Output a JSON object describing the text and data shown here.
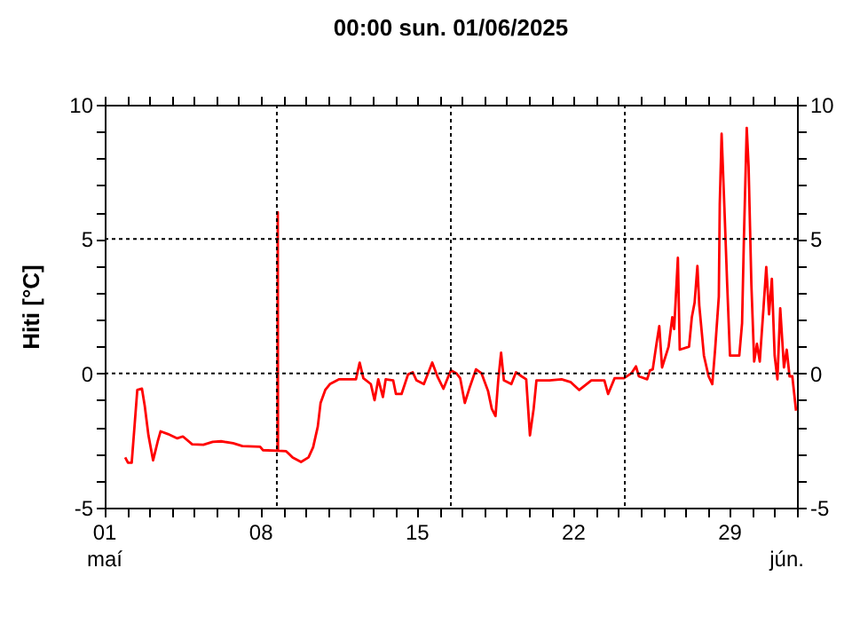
{
  "chart_data": {
    "type": "line",
    "title": "00:00   sun.  01/06/2025",
    "ylabel": "Hiti [°C]",
    "x": [
      "2025-05-01T22:00",
      "2025-05-02T01:00",
      "2025-05-02T05:00",
      "2025-05-02T08:00",
      "2025-05-02T11:00",
      "2025-05-02T16:00",
      "2025-05-02T19:00",
      "2025-05-02T23:00",
      "2025-05-03T04:00",
      "2025-05-03T09:00",
      "2025-05-03T12:00",
      "2025-05-03T20:00",
      "2025-05-04T06:00",
      "2025-05-04T12:00",
      "2025-05-04T22:00",
      "2025-05-05T10:00",
      "2025-05-05T20:00",
      "2025-05-06T05:00",
      "2025-05-06T18:00",
      "2025-05-07T04:00",
      "2025-05-07T23:00",
      "2025-05-08T02:00",
      "2025-05-08T17:45",
      "2025-05-08T18:00",
      "2025-05-08T18:15",
      "2025-05-09T03:00",
      "2025-05-09T10:00",
      "2025-05-09T19:00",
      "2025-05-10T03:00",
      "2025-05-10T08:00",
      "2025-05-10T13:00",
      "2025-05-10T16:00",
      "2025-05-10T21:00",
      "2025-05-11T02:00",
      "2025-05-11T12:00",
      "2025-05-12T06:00",
      "2025-05-12T10:00",
      "2025-05-12T14:00",
      "2025-05-12T22:00",
      "2025-05-13T02:00",
      "2025-05-13T06:00",
      "2025-05-13T11:00",
      "2025-05-13T14:00",
      "2025-05-13T22:00",
      "2025-05-14T01:00",
      "2025-05-14T07:00",
      "2025-05-14T14:00",
      "2025-05-14T19:00",
      "2025-05-14T23:00",
      "2025-05-15T07:00",
      "2025-05-15T16:00",
      "2025-05-15T22:00",
      "2025-05-16T04:00",
      "2025-05-16T12:00",
      "2025-05-16T18:00",
      "2025-05-16T22:00",
      "2025-05-17T03:00",
      "2025-05-17T08:00",
      "2025-05-17T15:00",
      "2025-05-17T21:00",
      "2025-05-18T04:00",
      "2025-05-18T08:00",
      "2025-05-18T12:00",
      "2025-05-18T15:00",
      "2025-05-18T18:00",
      "2025-05-18T21:00",
      "2025-05-19T05:00",
      "2025-05-19T10:00",
      "2025-05-19T16:00",
      "2025-05-19T21:00",
      "2025-05-20T01:00",
      "2025-05-20T05:00",
      "2025-05-20T08:00",
      "2025-05-20T22:00",
      "2025-05-21T11:00",
      "2025-05-21T21:00",
      "2025-05-22T06:00",
      "2025-05-22T19:00",
      "2025-05-23T09:00",
      "2025-05-23T13:00",
      "2025-05-23T20:00",
      "2025-05-24T06:00",
      "2025-05-24T14:00",
      "2025-05-24T19:00",
      "2025-05-24T22:00",
      "2025-05-25T07:00",
      "2025-05-25T10:00",
      "2025-05-25T13:00",
      "2025-05-25T17:00",
      "2025-05-25T20:00",
      "2025-05-25T23:00",
      "2025-05-26T06:00",
      "2025-05-26T10:00",
      "2025-05-26T12:00",
      "2025-05-26T16:00",
      "2025-05-26T18:00",
      "2025-05-27T04:00",
      "2025-05-27T07:00",
      "2025-05-27T10:00",
      "2025-05-27T13:00",
      "2025-05-27T15:00",
      "2025-05-27T20:00",
      "2025-05-28T01:00",
      "2025-05-28T05:00",
      "2025-05-28T08:00",
      "2025-05-28T12:00",
      "2025-05-28T13:00",
      "2025-05-28T15:00",
      "2025-05-28T18:00",
      "2025-05-28T21:00",
      "2025-05-29T00:00",
      "2025-05-29T10:00",
      "2025-05-29T13:00",
      "2025-05-29T15:00",
      "2025-05-29T18:00",
      "2025-05-29T20:00",
      "2025-05-29T23:00",
      "2025-05-30T02:00",
      "2025-05-30T05:00",
      "2025-05-30T08:00",
      "2025-05-30T12:00",
      "2025-05-30T15:00",
      "2025-05-30T18:00",
      "2025-05-30T21:00",
      "2025-05-31T00:00",
      "2025-05-31T03:00",
      "2025-05-31T06:00",
      "2025-05-31T10:00",
      "2025-05-31T13:00",
      "2025-05-31T16:00",
      "2025-05-31T19:00",
      "2025-05-31T23:00"
    ],
    "series": [
      {
        "color": "#ff0000",
        "values": [
          -3.13,
          -3.33,
          -3.33,
          -1.98,
          -0.62,
          -0.57,
          -1.21,
          -2.31,
          -3.24,
          -2.53,
          -2.16,
          -2.26,
          -2.42,
          -2.35,
          -2.64,
          -2.66,
          -2.55,
          -2.53,
          -2.6,
          -2.71,
          -2.73,
          -2.86,
          -2.88,
          6.0,
          -2.88,
          -2.9,
          -3.13,
          -3.3,
          -3.13,
          -2.75,
          -1.98,
          -1.1,
          -0.62,
          -0.4,
          -0.22,
          -0.22,
          0.4,
          -0.18,
          -0.4,
          -1.0,
          -0.22,
          -0.88,
          -0.22,
          -0.26,
          -0.77,
          -0.77,
          -0.04,
          0.04,
          -0.26,
          -0.4,
          0.4,
          -0.15,
          -0.57,
          0.11,
          0.0,
          -0.18,
          -1.1,
          -0.55,
          0.15,
          0.0,
          -0.66,
          -1.32,
          -1.59,
          -0.22,
          0.77,
          -0.26,
          -0.4,
          0.04,
          -0.11,
          -0.22,
          -2.31,
          -1.32,
          -0.26,
          -0.26,
          -0.22,
          -0.33,
          -0.62,
          -0.26,
          -0.26,
          -0.77,
          -0.18,
          -0.18,
          0.0,
          0.26,
          -0.11,
          -0.22,
          0.11,
          0.15,
          1.1,
          1.76,
          0.22,
          0.99,
          2.09,
          1.65,
          4.3,
          0.88,
          0.99,
          2.09,
          2.64,
          4.0,
          2.53,
          0.66,
          -0.11,
          -0.4,
          0.88,
          2.86,
          6.28,
          8.92,
          6.17,
          3.3,
          0.66,
          0.66,
          1.87,
          5.07,
          9.14,
          7.71,
          3.3,
          0.44,
          1.1,
          0.44,
          2.42,
          3.96,
          2.2,
          3.52,
          0.66,
          -0.22,
          2.42,
          0.22,
          0.88,
          -0.11,
          -0.11,
          -1.39
        ]
      }
    ],
    "xlim": [
      "2025-05-01",
      "2025-06-01"
    ],
    "annotations": [
      "maí",
      "jún."
    ],
    "xticks": [
      {
        "value": "2025-05-01",
        "label": "01"
      },
      {
        "value": "2025-05-02",
        "label": null
      },
      {
        "value": "2025-05-03",
        "label": null
      },
      {
        "value": "2025-05-04",
        "label": null
      },
      {
        "value": "2025-05-05",
        "label": null
      },
      {
        "value": "2025-05-06",
        "label": null
      },
      {
        "value": "2025-05-07",
        "label": null
      },
      {
        "value": "2025-05-08",
        "label": "08"
      },
      {
        "value": "2025-05-09",
        "label": null
      },
      {
        "value": "2025-05-10",
        "label": null
      },
      {
        "value": "2025-05-11",
        "label": null
      },
      {
        "value": "2025-05-12",
        "label": null
      },
      {
        "value": "2025-05-13",
        "label": null
      },
      {
        "value": "2025-05-14",
        "label": null
      },
      {
        "value": "2025-05-15",
        "label": "15"
      },
      {
        "value": "2025-05-16",
        "label": null
      },
      {
        "value": "2025-05-17",
        "label": null
      },
      {
        "value": "2025-05-18",
        "label": null
      },
      {
        "value": "2025-05-19",
        "label": null
      },
      {
        "value": "2025-05-20",
        "label": null
      },
      {
        "value": "2025-05-21",
        "label": null
      },
      {
        "value": "2025-05-22",
        "label": "22"
      },
      {
        "value": "2025-05-23",
        "label": null
      },
      {
        "value": "2025-05-24",
        "label": null
      },
      {
        "value": "2025-05-25",
        "label": null
      },
      {
        "value": "2025-05-26",
        "label": null
      },
      {
        "value": "2025-05-27",
        "label": null
      },
      {
        "value": "2025-05-28",
        "label": null
      },
      {
        "value": "2025-05-29",
        "label": "29"
      },
      {
        "value": "2025-05-30",
        "label": null
      },
      {
        "value": "2025-05-31",
        "label": null
      },
      {
        "value": "2025-06-01",
        "label": null
      }
    ],
    "ylim": [
      -5,
      10
    ],
    "yticks": [
      -5,
      {
        "value": -4,
        "label": null
      },
      {
        "value": -3,
        "label": null
      },
      {
        "value": -2,
        "label": null
      },
      {
        "value": -1,
        "label": null
      },
      0,
      {
        "value": 1,
        "label": null
      },
      {
        "value": 2,
        "label": null
      },
      {
        "value": 3,
        "label": null
      },
      {
        "value": 4,
        "label": null
      },
      5,
      {
        "value": 6,
        "label": null
      },
      {
        "value": 7,
        "label": null
      },
      {
        "value": 8,
        "label": null
      },
      {
        "value": 9,
        "label": null
      },
      10
    ],
    "y2lim": [
      -5,
      10
    ],
    "y2ticks": [
      -5,
      {
        "value": -4,
        "label": null
      },
      {
        "value": -3,
        "label": null
      },
      {
        "value": -2,
        "label": null
      },
      {
        "value": -1,
        "label": null
      },
      0,
      {
        "value": 1,
        "label": null
      },
      {
        "value": 2,
        "label": null
      },
      {
        "value": 3,
        "label": null
      },
      {
        "value": 4,
        "label": null
      },
      5,
      {
        "value": 6,
        "label": null
      },
      {
        "value": 7,
        "label": null
      },
      {
        "value": 8,
        "label": null
      },
      {
        "value": 9,
        "label": null
      },
      10
    ],
    "ref_lines": [
      {
        "axis": "y",
        "value": 0,
        "color": "#000000",
        "line_style": "dotted"
      },
      {
        "axis": "y",
        "value": 5,
        "color": "#000000",
        "line_style": "dotted"
      },
      {
        "axis": "x",
        "value": "2025-05-08T17:00",
        "color": "#000000",
        "line_style": "dotted"
      },
      {
        "axis": "x",
        "value": "2025-05-16T12:00",
        "color": "#000000",
        "line_style": "dotted"
      },
      {
        "axis": "x",
        "value": "2025-05-24T07:00",
        "color": "#000000",
        "line_style": "dotted"
      }
    ],
    "grid": false,
    "legend": false,
    "marker": "none",
    "line_style": "solid"
  }
}
